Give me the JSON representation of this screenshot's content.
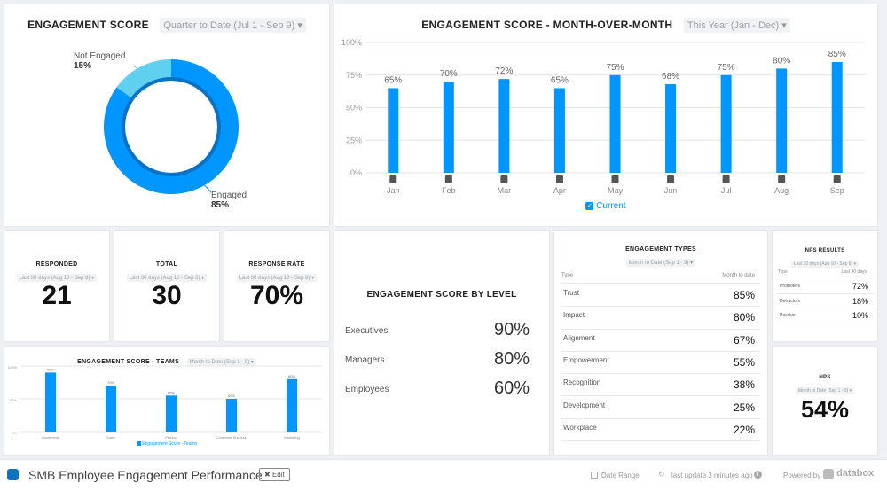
{
  "dashboard": {
    "title": "SMB Employee Engagement Performance",
    "edit": "Edit",
    "date_range": "Date Range",
    "last_update": "last update 3 minutes ago",
    "powered_by": "Powered by",
    "brand": "databox"
  },
  "engagement": {
    "title": "ENGAGEMENT SCORE",
    "filter": "Quarter to Date (Jul 1 - Sep 9)",
    "not_engaged_label": "Not Engaged",
    "not_engaged_value": "15%",
    "engaged_label": "Engaged",
    "engaged_value": "85%"
  },
  "mom": {
    "title": "ENGAGEMENT SCORE - MONTH-OVER-MONTH",
    "filter": "This Year (Jan - Dec)",
    "legend": "Current"
  },
  "responded": {
    "title": "RESPONDED",
    "filter": "Last 30 days (Aug 10 - Sep 8)",
    "value": "21"
  },
  "total": {
    "title": "TOTAL",
    "filter": "Last 30 days (Aug 10 - Sep 8)",
    "value": "30"
  },
  "rate": {
    "title": "RESPONSE RATE",
    "filter": "Last 30 days (Aug 10 - Sep 8)",
    "value": "70%"
  },
  "teams": {
    "title": "ENGAGEMENT SCORE - TEAMS",
    "filter": "Month to Date (Sep 1 - 9)",
    "legend": "Engagement Score - Teams"
  },
  "level": {
    "title": "ENGAGEMENT SCORE BY LEVEL",
    "rows": [
      {
        "label": "Executives",
        "value": "90%"
      },
      {
        "label": "Managers",
        "value": "80%"
      },
      {
        "label": "Employees",
        "value": "60%"
      }
    ]
  },
  "types": {
    "title": "ENGAGEMENT TYPES",
    "filter": "Month to Date (Sep 1 - 9)",
    "col1": "Type",
    "col2": "Month to date",
    "rows": [
      {
        "label": "Trust",
        "value": "85%"
      },
      {
        "label": "Impact",
        "value": "80%"
      },
      {
        "label": "Alignment",
        "value": "67%"
      },
      {
        "label": "Empowerment",
        "value": "55%"
      },
      {
        "label": "Recognition",
        "value": "38%"
      },
      {
        "label": "Development",
        "value": "25%"
      },
      {
        "label": "Workplace",
        "value": "22%"
      }
    ]
  },
  "nps_results": {
    "title": "NPS RESULTS",
    "filter": "Last 30 days (Aug 10 - Sep 8)",
    "col1": "Type",
    "col2": "Last 30 days",
    "rows": [
      {
        "label": "Promoters",
        "value": "72%"
      },
      {
        "label": "Detractors",
        "value": "18%"
      },
      {
        "label": "Passive",
        "value": "10%"
      }
    ]
  },
  "nps": {
    "title": "NPS",
    "filter": "Month to Date (Sep 1 - 9)",
    "value": "54%"
  },
  "colors": {
    "primary": "#0096ff",
    "light": "#5fd0f0",
    "dark": "#0a72c4"
  },
  "chart_data": [
    {
      "type": "pie",
      "title": "ENGAGEMENT SCORE",
      "categories": [
        "Engaged",
        "Not Engaged"
      ],
      "values": [
        85,
        15
      ]
    },
    {
      "type": "bar",
      "title": "ENGAGEMENT SCORE - MONTH-OVER-MONTH",
      "categories": [
        "Jan",
        "Feb",
        "Mar",
        "Apr",
        "May",
        "Jun",
        "Jul",
        "Aug",
        "Sep"
      ],
      "series": [
        {
          "name": "Current",
          "values": [
            65,
            70,
            72,
            65,
            75,
            68,
            75,
            80,
            85
          ]
        }
      ],
      "ylim": [
        0,
        100
      ],
      "yticks": [
        "0%",
        "25%",
        "50%",
        "75%",
        "100%"
      ]
    },
    {
      "type": "bar",
      "title": "ENGAGEMENT SCORE - TEAMS",
      "categories": [
        "Leadership",
        "Sales",
        "Product",
        "Customer Success",
        "Marketing"
      ],
      "series": [
        {
          "name": "Engagement Score - Teams",
          "values": [
            90,
            70,
            55,
            50,
            80
          ]
        }
      ],
      "ylim": [
        0,
        100
      ],
      "yticks": [
        "0%",
        "50%",
        "100%"
      ]
    }
  ]
}
